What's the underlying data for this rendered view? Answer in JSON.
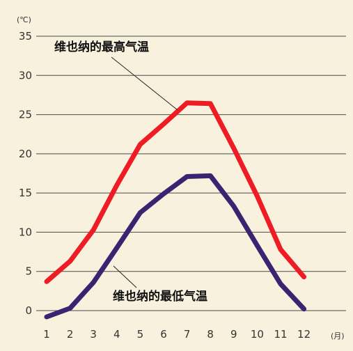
{
  "chart_data": {
    "type": "line",
    "y_unit": "(℃)",
    "x_unit": "(月)",
    "categories": [
      "1",
      "2",
      "3",
      "4",
      "5",
      "6",
      "7",
      "8",
      "9",
      "10",
      "11",
      "12"
    ],
    "ylim": [
      0,
      35
    ],
    "yticks": [
      0,
      5,
      10,
      15,
      20,
      25,
      30,
      35
    ],
    "grid": true,
    "series": [
      {
        "name": "维也纳的最高气温",
        "color": "#ee1c24",
        "values": [
          3.7,
          6.3,
          10.3,
          16.0,
          21.2,
          23.8,
          26.5,
          26.4,
          20.7,
          14.6,
          7.8,
          4.3
        ]
      },
      {
        "name": "维也纳的最低气温",
        "color": "#3a2370",
        "values": [
          -0.8,
          0.3,
          3.6,
          8.0,
          12.5,
          14.9,
          17.1,
          17.2,
          13.3,
          8.3,
          3.4,
          0.2
        ]
      }
    ]
  }
}
